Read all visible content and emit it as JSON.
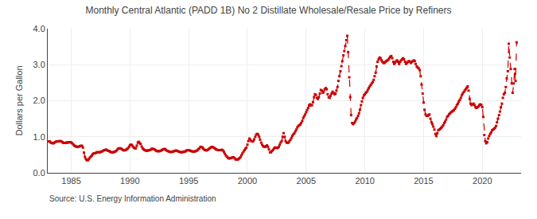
{
  "chart_data": {
    "type": "line",
    "title": "Monthly Central Atlantic (PADD 1B) No 2 Distillate Wholesale/Resale Price by Refiners",
    "ylabel": "Dollars per Gallon",
    "annotations": [
      "Source: U.S. Energy Information Administration"
    ],
    "color": "#cc0000",
    "marker": "square",
    "line_style": "dashed",
    "grid": true,
    "xlim": [
      1983.0,
      2023.3
    ],
    "ylim": [
      0.0,
      4.0
    ],
    "xticks": [
      1985,
      1990,
      1995,
      2000,
      2005,
      2010,
      2015,
      2020
    ],
    "yticks": [
      {
        "value": 0.0,
        "label": "0.0"
      },
      {
        "value": 1.0,
        "label": "1.0"
      },
      {
        "value": 2.0,
        "label": "2.0"
      },
      {
        "value": 3.0,
        "label": "3.0"
      },
      {
        "value": 4.0,
        "label": "4.0"
      }
    ],
    "x": [
      1983.08,
      1983.17,
      1983.25,
      1983.33,
      1983.42,
      1983.5,
      1983.58,
      1983.67,
      1983.75,
      1983.83,
      1983.92,
      1984.0,
      1984.08,
      1984.17,
      1984.25,
      1984.33,
      1984.42,
      1984.5,
      1984.58,
      1984.67,
      1984.75,
      1984.83,
      1984.92,
      1985.0,
      1985.08,
      1985.17,
      1985.25,
      1985.33,
      1985.42,
      1985.5,
      1985.58,
      1985.67,
      1985.75,
      1985.83,
      1985.92,
      1986.0,
      1986.08,
      1986.17,
      1986.25,
      1986.33,
      1986.42,
      1986.5,
      1986.58,
      1986.67,
      1986.75,
      1986.83,
      1986.92,
      1987.0,
      1987.08,
      1987.17,
      1987.25,
      1987.33,
      1987.42,
      1987.5,
      1987.58,
      1987.67,
      1987.75,
      1987.83,
      1987.92,
      1988.0,
      1988.08,
      1988.17,
      1988.25,
      1988.33,
      1988.42,
      1988.5,
      1988.58,
      1988.67,
      1988.75,
      1988.83,
      1988.92,
      1989.0,
      1989.08,
      1989.17,
      1989.25,
      1989.33,
      1989.42,
      1989.5,
      1989.58,
      1989.67,
      1989.75,
      1989.83,
      1989.92,
      1990.0,
      1990.08,
      1990.17,
      1990.25,
      1990.33,
      1990.42,
      1990.5,
      1990.58,
      1990.67,
      1990.75,
      1990.83,
      1990.92,
      1991.0,
      1991.08,
      1991.17,
      1991.25,
      1991.33,
      1991.42,
      1991.5,
      1991.58,
      1991.67,
      1991.75,
      1991.83,
      1991.92,
      1992.0,
      1992.08,
      1992.17,
      1992.25,
      1992.33,
      1992.42,
      1992.5,
      1992.58,
      1992.67,
      1992.75,
      1992.83,
      1992.92,
      1993.0,
      1993.08,
      1993.17,
      1993.25,
      1993.33,
      1993.42,
      1993.5,
      1993.58,
      1993.67,
      1993.75,
      1993.83,
      1993.92,
      1994.0,
      1994.08,
      1994.17,
      1994.25,
      1994.33,
      1994.42,
      1994.5,
      1994.58,
      1994.67,
      1994.75,
      1994.83,
      1994.92,
      1995.0,
      1995.08,
      1995.17,
      1995.25,
      1995.33,
      1995.42,
      1995.5,
      1995.58,
      1995.67,
      1995.75,
      1995.83,
      1995.92,
      1996.0,
      1996.08,
      1996.17,
      1996.25,
      1996.33,
      1996.42,
      1996.5,
      1996.58,
      1996.67,
      1996.75,
      1996.83,
      1996.92,
      1997.0,
      1997.08,
      1997.17,
      1997.25,
      1997.33,
      1997.42,
      1997.5,
      1997.58,
      1997.67,
      1997.75,
      1997.83,
      1997.92,
      1998.0,
      1998.08,
      1998.17,
      1998.25,
      1998.33,
      1998.42,
      1998.5,
      1998.58,
      1998.67,
      1998.75,
      1998.83,
      1998.92,
      1999.0,
      1999.08,
      1999.17,
      1999.25,
      1999.33,
      1999.42,
      1999.5,
      1999.58,
      1999.67,
      1999.75,
      1999.83,
      1999.92,
      2000.0,
      2000.08,
      2000.17,
      2000.25,
      2000.33,
      2000.42,
      2000.5,
      2000.58,
      2000.67,
      2000.75,
      2000.83,
      2000.92,
      2001.0,
      2001.08,
      2001.17,
      2001.25,
      2001.33,
      2001.42,
      2001.5,
      2001.58,
      2001.67,
      2001.75,
      2001.83,
      2001.92,
      2002.0,
      2002.08,
      2002.17,
      2002.25,
      2002.33,
      2002.42,
      2002.5,
      2002.58,
      2002.67,
      2002.75,
      2002.83,
      2002.92,
      2003.0,
      2003.08,
      2003.17,
      2003.25,
      2003.33,
      2003.42,
      2003.5,
      2003.58,
      2003.67,
      2003.75,
      2003.83,
      2003.92,
      2004.0,
      2004.08,
      2004.17,
      2004.25,
      2004.33,
      2004.42,
      2004.5,
      2004.58,
      2004.67,
      2004.75,
      2004.83,
      2004.92,
      2005.0,
      2005.08,
      2005.17,
      2005.25,
      2005.33,
      2005.42,
      2005.5,
      2005.58,
      2005.67,
      2005.75,
      2005.83,
      2005.92,
      2006.0,
      2006.08,
      2006.17,
      2006.25,
      2006.33,
      2006.42,
      2006.5,
      2006.58,
      2006.67,
      2006.75,
      2006.83,
      2006.92,
      2007.0,
      2007.08,
      2007.17,
      2007.25,
      2007.33,
      2007.42,
      2007.5,
      2007.58,
      2007.67,
      2007.75,
      2007.83,
      2007.92,
      2008.0,
      2008.08,
      2008.17,
      2008.25,
      2008.33,
      2008.42,
      2008.5,
      2008.58,
      2008.67,
      2008.75,
      2008.83,
      2008.92,
      2009.0,
      2009.08,
      2009.17,
      2009.25,
      2009.33,
      2009.42,
      2009.5,
      2009.58,
      2009.67,
      2009.75,
      2009.83,
      2009.92,
      2010.0,
      2010.08,
      2010.17,
      2010.25,
      2010.33,
      2010.42,
      2010.5,
      2010.58,
      2010.67,
      2010.75,
      2010.83,
      2010.92,
      2011.0,
      2011.08,
      2011.17,
      2011.25,
      2011.33,
      2011.42,
      2011.5,
      2011.58,
      2011.67,
      2011.75,
      2011.83,
      2011.92,
      2012.0,
      2012.08,
      2012.17,
      2012.25,
      2012.33,
      2012.42,
      2012.5,
      2012.58,
      2012.67,
      2012.75,
      2012.83,
      2012.92,
      2013.0,
      2013.08,
      2013.17,
      2013.25,
      2013.33,
      2013.42,
      2013.5,
      2013.58,
      2013.67,
      2013.75,
      2013.83,
      2013.92,
      2014.0,
      2014.08,
      2014.17,
      2014.25,
      2014.33,
      2014.42,
      2014.5,
      2014.58,
      2014.67,
      2014.75,
      2014.83,
      2014.92,
      2015.0,
      2015.08,
      2015.17,
      2015.25,
      2015.33,
      2015.42,
      2015.5,
      2015.58,
      2015.67,
      2015.75,
      2015.83,
      2015.92,
      2016.0,
      2016.08,
      2016.17,
      2016.25,
      2016.33,
      2016.42,
      2016.5,
      2016.58,
      2016.67,
      2016.75,
      2016.83,
      2016.92,
      2017.0,
      2017.08,
      2017.17,
      2017.25,
      2017.33,
      2017.42,
      2017.5,
      2017.58,
      2017.67,
      2017.75,
      2017.83,
      2017.92,
      2018.0,
      2018.08,
      2018.17,
      2018.25,
      2018.33,
      2018.42,
      2018.5,
      2018.58,
      2018.67,
      2018.75,
      2018.83,
      2018.92,
      2019.0,
      2019.08,
      2019.17,
      2019.25,
      2019.33,
      2019.42,
      2019.5,
      2019.58,
      2019.67,
      2019.75,
      2019.83,
      2019.92,
      2020.0,
      2020.08,
      2020.17,
      2020.25,
      2020.33,
      2020.42,
      2020.5,
      2020.58,
      2020.67,
      2020.75,
      2020.83,
      2020.92,
      2021.0,
      2021.08,
      2021.17,
      2021.25,
      2021.33,
      2021.42,
      2021.5,
      2021.58,
      2021.67,
      2021.75,
      2021.83,
      2021.92,
      2022.0,
      2022.08,
      2022.17,
      2022.25,
      2022.33,
      2022.42,
      2022.5,
      2022.58,
      2022.67,
      2022.75,
      2022.83,
      2022.92
    ],
    "values": [
      0.87,
      0.87,
      0.84,
      0.83,
      0.82,
      0.82,
      0.84,
      0.86,
      0.87,
      0.87,
      0.87,
      0.88,
      0.88,
      0.87,
      0.85,
      0.83,
      0.83,
      0.83,
      0.84,
      0.84,
      0.84,
      0.85,
      0.85,
      0.84,
      0.82,
      0.79,
      0.76,
      0.74,
      0.73,
      0.72,
      0.72,
      0.73,
      0.74,
      0.75,
      0.75,
      0.7,
      0.56,
      0.44,
      0.38,
      0.35,
      0.35,
      0.38,
      0.42,
      0.45,
      0.48,
      0.52,
      0.54,
      0.54,
      0.55,
      0.57,
      0.57,
      0.57,
      0.57,
      0.58,
      0.59,
      0.6,
      0.62,
      0.63,
      0.64,
      0.64,
      0.62,
      0.61,
      0.6,
      0.58,
      0.57,
      0.57,
      0.57,
      0.58,
      0.59,
      0.61,
      0.64,
      0.67,
      0.68,
      0.68,
      0.67,
      0.65,
      0.63,
      0.62,
      0.63,
      0.64,
      0.66,
      0.68,
      0.72,
      0.77,
      0.78,
      0.77,
      0.73,
      0.7,
      0.68,
      0.68,
      0.75,
      0.84,
      0.86,
      0.82,
      0.8,
      0.73,
      0.68,
      0.65,
      0.63,
      0.62,
      0.61,
      0.62,
      0.62,
      0.63,
      0.64,
      0.66,
      0.67,
      0.66,
      0.65,
      0.63,
      0.61,
      0.6,
      0.6,
      0.6,
      0.61,
      0.62,
      0.64,
      0.65,
      0.66,
      0.66,
      0.63,
      0.61,
      0.6,
      0.59,
      0.58,
      0.58,
      0.58,
      0.59,
      0.6,
      0.61,
      0.62,
      0.61,
      0.6,
      0.59,
      0.58,
      0.57,
      0.57,
      0.58,
      0.58,
      0.59,
      0.6,
      0.62,
      0.63,
      0.63,
      0.62,
      0.61,
      0.6,
      0.59,
      0.59,
      0.59,
      0.6,
      0.61,
      0.63,
      0.66,
      0.68,
      0.72,
      0.72,
      0.7,
      0.67,
      0.64,
      0.63,
      0.62,
      0.63,
      0.65,
      0.67,
      0.69,
      0.71,
      0.72,
      0.71,
      0.69,
      0.67,
      0.65,
      0.64,
      0.63,
      0.63,
      0.63,
      0.63,
      0.64,
      0.62,
      0.58,
      0.53,
      0.48,
      0.45,
      0.42,
      0.4,
      0.4,
      0.41,
      0.42,
      0.43,
      0.43,
      0.4,
      0.37,
      0.37,
      0.37,
      0.38,
      0.41,
      0.44,
      0.49,
      0.54,
      0.59,
      0.63,
      0.67,
      0.7,
      0.78,
      0.88,
      0.95,
      0.92,
      0.88,
      0.87,
      0.88,
      0.93,
      1.0,
      1.06,
      1.08,
      1.06,
      1.0,
      0.92,
      0.84,
      0.78,
      0.74,
      0.72,
      0.72,
      0.74,
      0.76,
      0.72,
      0.65,
      0.57,
      0.57,
      0.6,
      0.63,
      0.67,
      0.7,
      0.7,
      0.69,
      0.69,
      0.72,
      0.78,
      0.84,
      0.88,
      1.0,
      1.1,
      1.0,
      0.88,
      0.84,
      0.83,
      0.84,
      0.88,
      0.92,
      0.97,
      1.03,
      1.07,
      1.1,
      1.15,
      1.2,
      1.26,
      1.3,
      1.32,
      1.34,
      1.38,
      1.44,
      1.52,
      1.57,
      1.62,
      1.68,
      1.74,
      1.8,
      1.87,
      1.9,
      1.87,
      1.88,
      1.96,
      2.1,
      2.18,
      2.16,
      2.08,
      2.05,
      2.1,
      2.2,
      2.3,
      2.28,
      2.22,
      2.25,
      2.32,
      2.35,
      2.32,
      2.18,
      2.1,
      2.08,
      2.14,
      2.2,
      2.25,
      2.22,
      2.18,
      2.2,
      2.28,
      2.38,
      2.55,
      2.68,
      2.82,
      2.96,
      3.1,
      3.26,
      3.38,
      3.52,
      3.68,
      3.8,
      3.35,
      2.65,
      2.1,
      1.6,
      1.38,
      1.35,
      1.38,
      1.42,
      1.48,
      1.52,
      1.58,
      1.65,
      1.75,
      1.88,
      1.98,
      2.08,
      2.15,
      2.18,
      2.22,
      2.25,
      2.3,
      2.35,
      2.4,
      2.44,
      2.48,
      2.52,
      2.58,
      2.68,
      2.78,
      2.95,
      3.08,
      3.15,
      3.2,
      3.18,
      3.12,
      3.08,
      3.05,
      3.05,
      3.08,
      3.1,
      3.12,
      3.14,
      3.18,
      3.22,
      3.24,
      3.18,
      3.08,
      3.02,
      3.06,
      3.1,
      3.12,
      3.08,
      3.02,
      3.08,
      3.12,
      3.15,
      3.18,
      3.15,
      3.08,
      3.02,
      3.05,
      3.08,
      3.1,
      3.08,
      3.05,
      3.08,
      3.1,
      3.12,
      3.1,
      3.02,
      2.95,
      2.92,
      2.9,
      2.85,
      2.68,
      2.45,
      2.2,
      1.95,
      1.75,
      1.62,
      1.58,
      1.58,
      1.6,
      1.62,
      1.5,
      1.4,
      1.35,
      1.28,
      1.2,
      1.08,
      1.02,
      1.1,
      1.18,
      1.2,
      1.22,
      1.25,
      1.28,
      1.32,
      1.38,
      1.42,
      1.48,
      1.55,
      1.58,
      1.62,
      1.65,
      1.68,
      1.7,
      1.72,
      1.74,
      1.78,
      1.82,
      1.88,
      1.92,
      1.98,
      2.02,
      2.08,
      2.15,
      2.2,
      2.24,
      2.28,
      2.32,
      2.36,
      2.4,
      2.28,
      2.05,
      1.92,
      1.88,
      1.9,
      1.92,
      1.88,
      1.82,
      1.8,
      1.82,
      1.84,
      1.88,
      1.9,
      1.88,
      1.82,
      1.55,
      1.05,
      0.88,
      0.82,
      0.85,
      0.95,
      1.02,
      1.08,
      1.12,
      1.18,
      1.2,
      1.22,
      1.25,
      1.3,
      1.4,
      1.5,
      1.6,
      1.7,
      1.82,
      1.92,
      2.08,
      2.18,
      2.22,
      2.38,
      2.62,
      2.82,
      3.58,
      3.2,
      2.88,
      2.48,
      2.22,
      2.48,
      2.88,
      2.55,
      3.62
    ]
  }
}
